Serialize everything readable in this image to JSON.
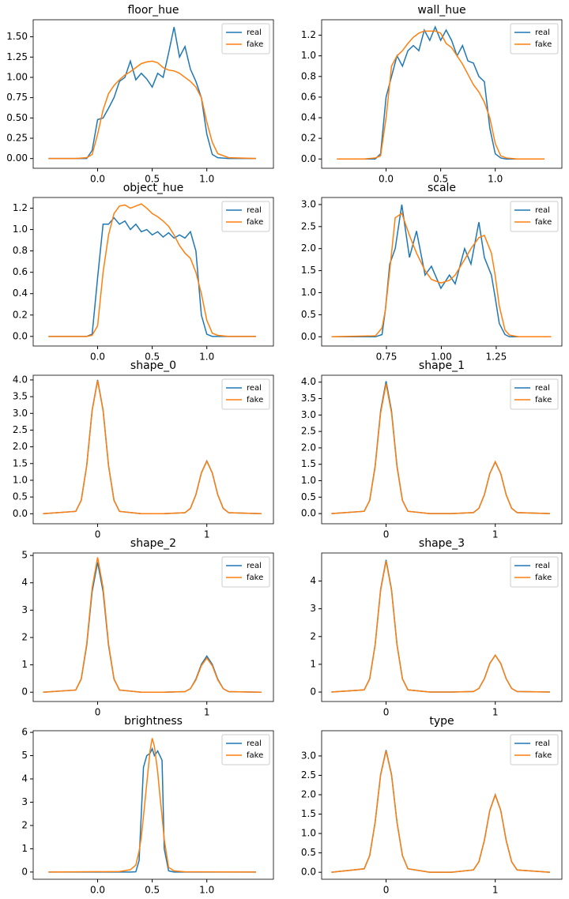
{
  "chart_data": [
    {
      "type": "line",
      "title": "floor_hue",
      "legend": "upper right",
      "x": [
        -0.45,
        -0.2,
        -0.1,
        -0.05,
        0,
        0.05,
        0.1,
        0.15,
        0.2,
        0.25,
        0.3,
        0.35,
        0.4,
        0.45,
        0.5,
        0.55,
        0.6,
        0.65,
        0.7,
        0.75,
        0.8,
        0.85,
        0.9,
        0.95,
        1.0,
        1.05,
        1.1,
        1.2,
        1.45
      ],
      "series": [
        {
          "name": "real",
          "color": "#1f77b4",
          "values": [
            0,
            0,
            0,
            0.1,
            0.48,
            0.5,
            0.62,
            0.75,
            0.95,
            1.0,
            1.2,
            0.97,
            1.05,
            0.98,
            0.88,
            1.05,
            1.0,
            1.3,
            1.62,
            1.25,
            1.38,
            1.1,
            0.95,
            0.75,
            0.3,
            0.05,
            0.01,
            0,
            0
          ]
        },
        {
          "name": "fake",
          "color": "#ff7f0e",
          "values": [
            0,
            0,
            0.01,
            0.05,
            0.3,
            0.6,
            0.8,
            0.9,
            0.97,
            1.03,
            1.07,
            1.12,
            1.17,
            1.19,
            1.2,
            1.18,
            1.12,
            1.09,
            1.08,
            1.05,
            1.0,
            0.95,
            0.88,
            0.75,
            0.45,
            0.2,
            0.06,
            0.01,
            0
          ]
        }
      ],
      "xlim": [
        -0.59,
        1.61
      ],
      "xticks": [
        {
          "value": 0,
          "label": "0.0"
        },
        0.5,
        {
          "value": 1,
          "label": "1.0"
        }
      ],
      "ylim": [
        -0.12,
        1.71
      ],
      "yticks": [
        {
          "value": 0,
          "label": "0.00"
        },
        0.25,
        {
          "value": 0.5,
          "label": "0.50"
        },
        0.75,
        {
          "value": 1,
          "label": "1.00"
        },
        1.25,
        {
          "value": 1.5,
          "label": "1.50"
        }
      ]
    },
    {
      "type": "line",
      "title": "wall_hue",
      "legend": "upper right",
      "x": [
        -0.45,
        -0.2,
        -0.1,
        -0.05,
        0,
        0.05,
        0.1,
        0.15,
        0.2,
        0.25,
        0.3,
        0.35,
        0.4,
        0.45,
        0.5,
        0.55,
        0.6,
        0.65,
        0.7,
        0.75,
        0.8,
        0.85,
        0.9,
        0.95,
        1.0,
        1.05,
        1.1,
        1.2,
        1.45
      ],
      "series": [
        {
          "name": "real",
          "color": "#1f77b4",
          "values": [
            0,
            0,
            0,
            0.05,
            0.6,
            0.8,
            1.0,
            0.9,
            1.05,
            1.1,
            1.05,
            1.25,
            1.15,
            1.28,
            1.15,
            1.25,
            1.15,
            1.0,
            1.1,
            0.95,
            0.93,
            0.8,
            0.75,
            0.3,
            0.05,
            0.01,
            0,
            0,
            0
          ]
        },
        {
          "name": "fake",
          "color": "#ff7f0e",
          "values": [
            0,
            0,
            0.01,
            0.03,
            0.4,
            0.9,
            1.0,
            1.05,
            1.12,
            1.18,
            1.22,
            1.24,
            1.24,
            1.24,
            1.22,
            1.12,
            1.08,
            1.0,
            0.92,
            0.82,
            0.72,
            0.65,
            0.55,
            0.4,
            0.15,
            0.03,
            0.01,
            0,
            0
          ]
        }
      ],
      "xlim": [
        -0.59,
        1.61
      ],
      "xticks": [
        {
          "value": 0,
          "label": "0.0"
        },
        0.5,
        {
          "value": 1,
          "label": "1.0"
        }
      ],
      "ylim": [
        -0.09,
        1.35
      ],
      "yticks": [
        {
          "value": 0,
          "label": "0.0"
        },
        0.2,
        0.4,
        0.6,
        0.8,
        {
          "value": 1,
          "label": "1.0"
        },
        1.2
      ]
    },
    {
      "type": "line",
      "title": "object_hue",
      "legend": "upper right",
      "x": [
        -0.45,
        -0.2,
        -0.1,
        -0.05,
        0,
        0.05,
        0.1,
        0.15,
        0.2,
        0.25,
        0.3,
        0.35,
        0.4,
        0.45,
        0.5,
        0.55,
        0.6,
        0.65,
        0.7,
        0.75,
        0.8,
        0.85,
        0.9,
        0.95,
        1.0,
        1.05,
        1.1,
        1.2,
        1.45
      ],
      "series": [
        {
          "name": "real",
          "color": "#1f77b4",
          "values": [
            0,
            0,
            0,
            0.02,
            0.55,
            1.05,
            1.05,
            1.11,
            1.05,
            1.08,
            1.0,
            1.05,
            0.98,
            1.0,
            0.95,
            0.98,
            0.93,
            0.97,
            0.92,
            0.95,
            0.92,
            0.98,
            0.8,
            0.2,
            0.02,
            0,
            0,
            0,
            0
          ]
        },
        {
          "name": "fake",
          "color": "#ff7f0e",
          "values": [
            0,
            0,
            0,
            0.01,
            0.1,
            0.6,
            0.95,
            1.15,
            1.22,
            1.23,
            1.2,
            1.22,
            1.24,
            1.2,
            1.15,
            1.12,
            1.08,
            1.03,
            0.95,
            0.85,
            0.78,
            0.73,
            0.6,
            0.4,
            0.15,
            0.03,
            0.01,
            0,
            0
          ]
        }
      ],
      "xlim": [
        -0.59,
        1.61
      ],
      "xticks": [
        {
          "value": 0,
          "label": "0.0"
        },
        0.5,
        {
          "value": 1,
          "label": "1.0"
        }
      ],
      "ylim": [
        -0.09,
        1.3
      ],
      "yticks": [
        {
          "value": 0,
          "label": "0.0"
        },
        0.2,
        0.4,
        0.6,
        0.8,
        {
          "value": 1,
          "label": "1.0"
        },
        1.2
      ]
    },
    {
      "type": "line",
      "title": "scale",
      "legend": "upper right",
      "x": [
        0.5,
        0.7,
        0.73,
        0.745,
        0.765,
        0.79,
        0.82,
        0.855,
        0.887,
        0.926,
        0.955,
        0.998,
        1.037,
        1.063,
        1.106,
        1.135,
        1.171,
        1.196,
        1.228,
        1.245,
        1.264,
        1.29,
        1.31,
        1.35,
        1.5
      ],
      "series": [
        {
          "name": "real",
          "color": "#1f77b4",
          "values": [
            0,
            0,
            0.05,
            0.6,
            1.65,
            2.0,
            3.0,
            1.8,
            2.4,
            1.4,
            1.6,
            1.1,
            1.4,
            1.2,
            2.0,
            1.65,
            2.6,
            1.8,
            1.4,
            0.9,
            0.3,
            0.05,
            0,
            0,
            0
          ]
        },
        {
          "name": "fake",
          "color": "#ff7f0e",
          "values": [
            0,
            0.02,
            0.2,
            0.6,
            1.5,
            2.7,
            2.8,
            2.3,
            1.9,
            1.5,
            1.3,
            1.22,
            1.28,
            1.4,
            1.75,
            2.0,
            2.25,
            2.3,
            1.9,
            1.4,
            0.7,
            0.15,
            0.04,
            0,
            0
          ]
        }
      ],
      "xlim": [
        0.455,
        1.549
      ],
      "xticks": [
        0.75,
        {
          "value": 1,
          "label": "1.00"
        },
        1.25
      ],
      "ylim": [
        -0.21,
        3.16
      ],
      "yticks": [
        {
          "value": 0,
          "label": "0.0"
        },
        0.5,
        {
          "value": 1,
          "label": "1.0"
        },
        1.5,
        {
          "value": 2,
          "label": "2.0"
        },
        2.5,
        {
          "value": 3,
          "label": "3.0"
        }
      ]
    },
    {
      "type": "line",
      "title": "shape_0",
      "legend": "upper right",
      "x": [
        -0.5,
        -0.2,
        -0.15,
        -0.1,
        -0.05,
        0,
        0.05,
        0.1,
        0.15,
        0.2,
        0.4,
        0.6,
        0.8,
        0.85,
        0.9,
        0.95,
        1,
        1.05,
        1.1,
        1.15,
        1.2,
        1.5
      ],
      "series": [
        {
          "name": "real",
          "color": "#1f77b4",
          "values": [
            0,
            0.07,
            0.4,
            1.44,
            3.1,
            4.0,
            3.1,
            1.44,
            0.4,
            0.07,
            0,
            0,
            0.03,
            0.16,
            0.57,
            1.22,
            1.58,
            1.22,
            0.57,
            0.16,
            0.03,
            0
          ]
        },
        {
          "name": "fake",
          "color": "#ff7f0e",
          "values": [
            0,
            0.07,
            0.4,
            1.43,
            3.08,
            3.98,
            3.08,
            1.43,
            0.4,
            0.07,
            0,
            0,
            0.03,
            0.16,
            0.57,
            1.22,
            1.57,
            1.22,
            0.57,
            0.16,
            0.03,
            0
          ]
        }
      ],
      "xlim": [
        -0.59,
        1.61
      ],
      "xticks": [
        0,
        1
      ],
      "ylim": [
        -0.3,
        4.14
      ],
      "yticks": [
        {
          "value": 0,
          "label": "0.0"
        },
        0.5,
        {
          "value": 1,
          "label": "1.0"
        },
        1.5,
        {
          "value": 2,
          "label": "2.0"
        },
        2.5,
        {
          "value": 3,
          "label": "3.0"
        },
        3.5,
        {
          "value": 4,
          "label": "4.0"
        }
      ]
    },
    {
      "type": "line",
      "title": "shape_1",
      "legend": "upper right",
      "x": [
        -0.5,
        -0.2,
        -0.15,
        -0.1,
        -0.05,
        0,
        0.05,
        0.1,
        0.15,
        0.2,
        0.4,
        0.6,
        0.8,
        0.85,
        0.9,
        0.95,
        1,
        1.05,
        1.1,
        1.15,
        1.2,
        1.5
      ],
      "series": [
        {
          "name": "real",
          "color": "#1f77b4",
          "values": [
            0,
            0.07,
            0.4,
            1.45,
            3.12,
            4.03,
            3.12,
            1.45,
            0.4,
            0.07,
            0,
            0,
            0.03,
            0.16,
            0.57,
            1.22,
            1.57,
            1.22,
            0.57,
            0.16,
            0.03,
            0
          ]
        },
        {
          "name": "fake",
          "color": "#ff7f0e",
          "values": [
            0,
            0.07,
            0.4,
            1.42,
            3.06,
            3.95,
            3.06,
            1.42,
            0.4,
            0.07,
            0,
            0,
            0.03,
            0.16,
            0.57,
            1.22,
            1.58,
            1.22,
            0.57,
            0.16,
            0.03,
            0
          ]
        }
      ],
      "xlim": [
        -0.59,
        1.61
      ],
      "xticks": [
        0,
        1
      ],
      "ylim": [
        -0.31,
        4.21
      ],
      "yticks": [
        {
          "value": 0,
          "label": "0.0"
        },
        0.5,
        {
          "value": 1,
          "label": "1.0"
        },
        1.5,
        {
          "value": 2,
          "label": "2.0"
        },
        2.5,
        {
          "value": 3,
          "label": "3.0"
        },
        3.5,
        {
          "value": 4,
          "label": "4.0"
        }
      ]
    },
    {
      "type": "line",
      "title": "shape_2",
      "legend": "upper right",
      "x": [
        -0.5,
        -0.2,
        -0.15,
        -0.1,
        -0.05,
        0,
        0.05,
        0.1,
        0.15,
        0.2,
        0.4,
        0.6,
        0.8,
        0.85,
        0.9,
        0.95,
        1,
        1.05,
        1.1,
        1.15,
        1.2,
        1.5
      ],
      "series": [
        {
          "name": "real",
          "color": "#1f77b4",
          "values": [
            0,
            0.08,
            0.48,
            1.71,
            3.68,
            4.75,
            3.68,
            1.71,
            0.48,
            0.08,
            0,
            0,
            0.02,
            0.13,
            0.48,
            1.02,
            1.32,
            1.02,
            0.48,
            0.13,
            0.02,
            0
          ]
        },
        {
          "name": "fake",
          "color": "#ff7f0e",
          "values": [
            0,
            0.08,
            0.49,
            1.77,
            3.82,
            4.93,
            3.82,
            1.77,
            0.49,
            0.08,
            0,
            0,
            0.02,
            0.13,
            0.45,
            0.97,
            1.25,
            0.97,
            0.45,
            0.13,
            0.02,
            0
          ]
        }
      ],
      "xlim": [
        -0.59,
        1.61
      ],
      "xticks": [
        0,
        1
      ],
      "ylim": [
        -0.34,
        5.09
      ],
      "yticks": [
        0,
        1,
        2,
        3,
        4,
        5
      ]
    },
    {
      "type": "line",
      "title": "shape_3",
      "legend": "upper right",
      "x": [
        -0.5,
        -0.2,
        -0.15,
        -0.1,
        -0.05,
        0,
        0.05,
        0.1,
        0.15,
        0.2,
        0.4,
        0.6,
        0.8,
        0.85,
        0.9,
        0.95,
        1,
        1.05,
        1.1,
        1.15,
        1.2,
        1.5
      ],
      "series": [
        {
          "name": "real",
          "color": "#1f77b4",
          "values": [
            0,
            0.08,
            0.48,
            1.71,
            3.69,
            4.76,
            3.69,
            1.71,
            0.48,
            0.08,
            0,
            0,
            0.02,
            0.13,
            0.48,
            1.03,
            1.33,
            1.03,
            0.48,
            0.13,
            0.02,
            0
          ]
        },
        {
          "name": "fake",
          "color": "#ff7f0e",
          "values": [
            0,
            0.08,
            0.47,
            1.7,
            3.66,
            4.72,
            3.66,
            1.7,
            0.47,
            0.08,
            0,
            0,
            0.02,
            0.13,
            0.48,
            1.03,
            1.33,
            1.03,
            0.48,
            0.13,
            0.02,
            0
          ]
        }
      ],
      "xlim": [
        -0.59,
        1.61
      ],
      "xticks": [
        0,
        1
      ],
      "ylim": [
        -0.34,
        5.01
      ],
      "yticks": [
        0,
        1,
        2,
        3,
        4
      ]
    },
    {
      "type": "line",
      "title": "brightness",
      "legend": "upper right",
      "x": [
        -0.45,
        0.2,
        0.3,
        0.35,
        0.38,
        0.4,
        0.42,
        0.45,
        0.48,
        0.5,
        0.52,
        0.55,
        0.57,
        0.59,
        0.61,
        0.65,
        0.7,
        0.8,
        1.45
      ],
      "series": [
        {
          "name": "real",
          "color": "#1f77b4",
          "values": [
            0,
            0,
            0,
            0.01,
            0.5,
            2.5,
            4.5,
            5.0,
            5.1,
            5.3,
            5.0,
            5.2,
            5.0,
            4.8,
            1.0,
            0.05,
            0,
            0,
            0
          ]
        },
        {
          "name": "fake",
          "color": "#ff7f0e",
          "values": [
            0,
            0.02,
            0.1,
            0.3,
            0.9,
            1.5,
            2.4,
            3.8,
            5.2,
            5.75,
            5.4,
            4.3,
            3.3,
            2.4,
            1.4,
            0.2,
            0.05,
            0.01,
            0
          ]
        }
      ],
      "xlim": [
        -0.59,
        1.61
      ],
      "xticks": [
        {
          "value": 0,
          "label": "0.0"
        },
        0.5,
        {
          "value": 1,
          "label": "1.0"
        }
      ],
      "ylim": [
        -0.31,
        6.07
      ],
      "yticks": [
        0,
        1,
        2,
        3,
        4,
        5,
        6
      ]
    },
    {
      "type": "line",
      "title": "type",
      "legend": "upper right",
      "x": [
        -0.5,
        -0.2,
        -0.15,
        -0.1,
        -0.05,
        0,
        0.05,
        0.1,
        0.15,
        0.2,
        0.4,
        0.6,
        0.8,
        0.85,
        0.9,
        0.95,
        1,
        1.05,
        1.1,
        1.15,
        1.2,
        1.5
      ],
      "series": [
        {
          "name": "real",
          "color": "#1f77b4",
          "values": [
            0,
            0.09,
            0.43,
            1.29,
            2.52,
            3.15,
            2.52,
            1.29,
            0.43,
            0.09,
            0,
            0,
            0.06,
            0.27,
            0.82,
            1.6,
            2.0,
            1.6,
            0.82,
            0.27,
            0.06,
            0
          ]
        },
        {
          "name": "fake",
          "color": "#ff7f0e",
          "values": [
            0,
            0.09,
            0.43,
            1.29,
            2.5,
            3.13,
            2.5,
            1.29,
            0.43,
            0.09,
            0,
            0,
            0.06,
            0.27,
            0.82,
            1.59,
            1.99,
            1.59,
            0.82,
            0.27,
            0.06,
            0
          ]
        }
      ],
      "xlim": [
        -0.59,
        1.61
      ],
      "xticks": [
        0,
        1
      ],
      "ylim": [
        -0.18,
        3.65
      ],
      "yticks": [
        {
          "value": 0,
          "label": "0.0"
        },
        0.5,
        {
          "value": 1,
          "label": "1.0"
        },
        1.5,
        {
          "value": 2,
          "label": "2.0"
        },
        2.5,
        {
          "value": 3,
          "label": "3.0"
        }
      ]
    }
  ]
}
